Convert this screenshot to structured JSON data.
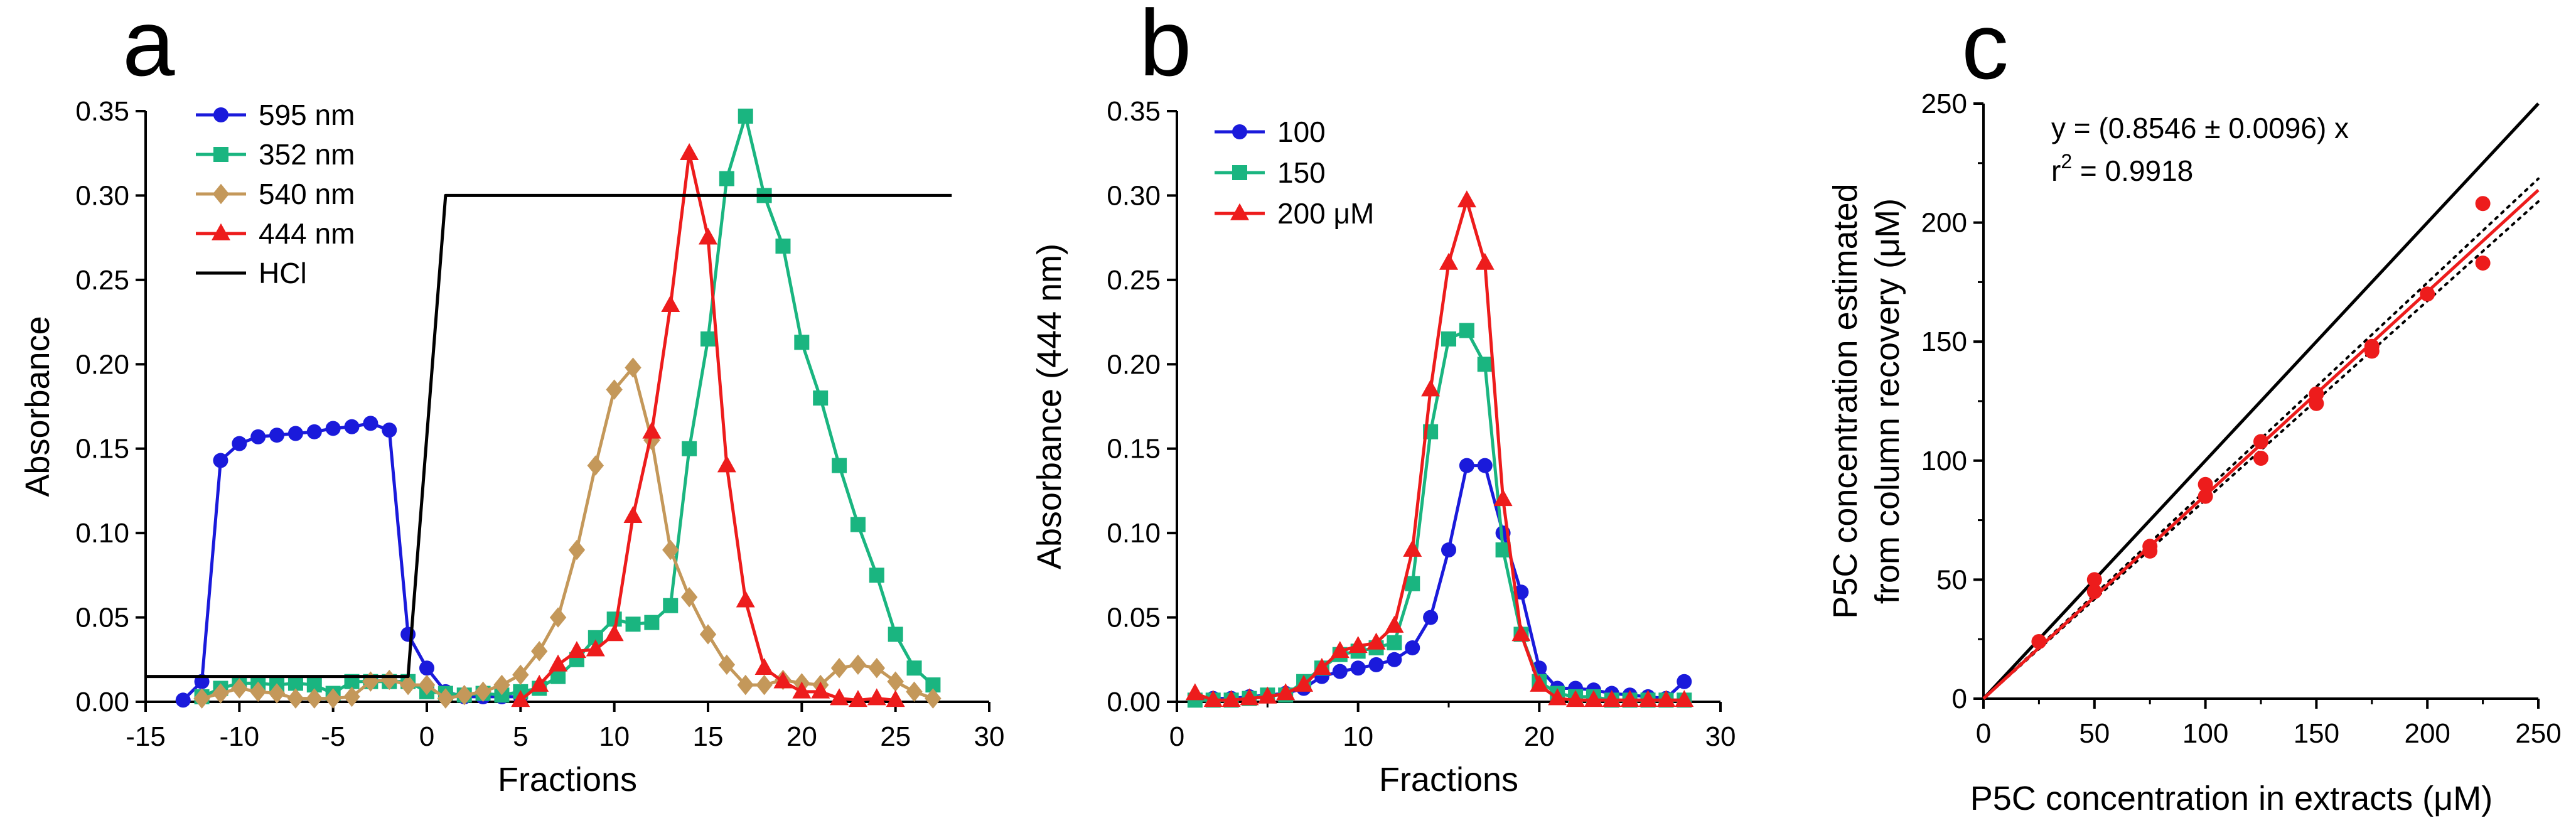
{
  "chart_data": [
    {
      "panel_label": "a",
      "type": "line",
      "title": "",
      "xlabel": "Fractions",
      "ylabel": "Absorbance",
      "xlim": [
        -15,
        30
      ],
      "ylim": [
        0,
        0.35
      ],
      "xticks": [
        -15,
        -10,
        -5,
        0,
        5,
        10,
        15,
        20,
        25,
        30
      ],
      "xtick_labels": [
        "-15",
        "-10",
        "-5",
        "0",
        "5",
        "10",
        "15",
        "20",
        "25",
        "30"
      ],
      "yticks": [
        0,
        0.05,
        0.1,
        0.15,
        0.2,
        0.25,
        0.3,
        0.35
      ],
      "ytick_labels": [
        "0.00",
        "0.05",
        "0.10",
        "0.15",
        "0.20",
        "0.25",
        "0.30",
        "0.35"
      ],
      "legend_position": "top-left",
      "series": [
        {
          "name": "595 nm",
          "color": "#1a1adb",
          "marker": "circle",
          "x": [
            -13,
            -12,
            -11,
            -10,
            -9,
            -8,
            -7,
            -6,
            -5,
            -4,
            -3,
            -2,
            -1,
            0,
            1,
            2,
            3,
            4,
            5
          ],
          "y": [
            0.001,
            0.012,
            0.143,
            0.153,
            0.157,
            0.158,
            0.159,
            0.16,
            0.162,
            0.163,
            0.165,
            0.161,
            0.04,
            0.02,
            0.006,
            0.003,
            0.003,
            0.003,
            0.003
          ]
        },
        {
          "name": "352 nm",
          "color": "#1ab580",
          "marker": "square",
          "x": [
            -12,
            -11,
            -10,
            -9,
            -8,
            -7,
            -6,
            -5,
            -4,
            -3,
            -2,
            -1,
            0,
            1,
            2,
            3,
            4,
            5,
            6,
            7,
            8,
            9,
            10,
            11,
            12,
            13,
            14,
            15,
            16,
            17,
            18,
            19,
            20,
            21,
            22,
            23,
            24,
            25,
            26,
            27
          ],
          "y": [
            0.003,
            0.008,
            0.011,
            0.011,
            0.01,
            0.011,
            0.01,
            0.005,
            0.012,
            0.012,
            0.012,
            0.012,
            0.006,
            0.005,
            0.004,
            0.005,
            0.004,
            0.006,
            0.008,
            0.015,
            0.025,
            0.038,
            0.049,
            0.046,
            0.047,
            0.057,
            0.15,
            0.215,
            0.31,
            0.347,
            0.3,
            0.27,
            0.213,
            0.18,
            0.14,
            0.105,
            0.075,
            0.04,
            0.02,
            0.01
          ]
        },
        {
          "name": "540 nm",
          "color": "#c4985a",
          "marker": "diamond",
          "x": [
            -12,
            -11,
            -10,
            -9,
            -8,
            -7,
            -6,
            -5,
            -4,
            -3,
            -2,
            -1,
            0,
            1,
            2,
            3,
            4,
            5,
            6,
            7,
            8,
            9,
            10,
            11,
            12,
            13,
            14,
            15,
            16,
            17,
            18,
            19,
            20,
            21,
            22,
            23,
            24,
            25,
            26,
            27
          ],
          "y": [
            0.002,
            0.005,
            0.008,
            0.006,
            0.005,
            0.002,
            0.002,
            0.002,
            0.003,
            0.012,
            0.013,
            0.01,
            0.01,
            0.002,
            0.004,
            0.006,
            0.01,
            0.016,
            0.03,
            0.05,
            0.09,
            0.14,
            0.185,
            0.198,
            0.155,
            0.09,
            0.062,
            0.04,
            0.022,
            0.01,
            0.01,
            0.013,
            0.011,
            0.01,
            0.02,
            0.022,
            0.02,
            0.012,
            0.006,
            0.002
          ]
        },
        {
          "name": "444 nm",
          "color": "#ed1c1c",
          "marker": "triangle",
          "x": [
            5,
            6,
            7,
            8,
            9,
            10,
            11,
            12,
            13,
            14,
            15,
            16,
            17,
            18,
            19,
            20,
            21,
            22,
            23,
            24,
            25
          ],
          "y": [
            0.001,
            0.01,
            0.022,
            0.03,
            0.031,
            0.04,
            0.11,
            0.16,
            0.235,
            0.325,
            0.275,
            0.14,
            0.06,
            0.02,
            0.012,
            0.006,
            0.006,
            0.002,
            0.001,
            0.002,
            0.001
          ]
        },
        {
          "name": "HCl",
          "color": "#000000",
          "marker": "none",
          "x": [
            -15,
            -1,
            1,
            28
          ],
          "y": [
            0.015,
            0.015,
            0.3,
            0.3
          ]
        }
      ]
    },
    {
      "panel_label": "b",
      "type": "line",
      "title": "",
      "xlabel": "Fractions",
      "ylabel": "Absorbance (444 nm)",
      "xlim": [
        0,
        30
      ],
      "ylim": [
        0,
        0.35
      ],
      "xticks": [
        0,
        10,
        20,
        30
      ],
      "xtick_labels": [
        "0",
        "10",
        "20",
        "30"
      ],
      "yticks": [
        0,
        0.05,
        0.1,
        0.15,
        0.2,
        0.25,
        0.3,
        0.35
      ],
      "ytick_labels": [
        "0.00",
        "0.05",
        "0.10",
        "0.15",
        "0.20",
        "0.25",
        "0.30",
        "0.35"
      ],
      "legend_position": "top-left",
      "series": [
        {
          "name": "100",
          "color": "#1a1adb",
          "marker": "circle",
          "x": [
            1,
            2,
            3,
            4,
            5,
            6,
            7,
            8,
            9,
            10,
            11,
            12,
            13,
            14,
            15,
            16,
            17,
            18,
            19,
            20,
            21,
            22,
            23,
            24,
            25,
            26,
            27,
            28
          ],
          "y": [
            0.002,
            0.002,
            0.002,
            0.003,
            0.004,
            0.005,
            0.008,
            0.015,
            0.018,
            0.02,
            0.022,
            0.025,
            0.032,
            0.05,
            0.09,
            0.14,
            0.14,
            0.1,
            0.065,
            0.02,
            0.008,
            0.008,
            0.007,
            0.005,
            0.004,
            0.003,
            0.002,
            0.012
          ]
        },
        {
          "name": "150",
          "color": "#1ab580",
          "marker": "square",
          "x": [
            1,
            2,
            3,
            4,
            5,
            6,
            7,
            8,
            9,
            10,
            11,
            12,
            13,
            14,
            15,
            16,
            17,
            18,
            19,
            20,
            21,
            22,
            23,
            24,
            25,
            26,
            27,
            28
          ],
          "y": [
            0.001,
            0.001,
            0.001,
            0.002,
            0.004,
            0.004,
            0.012,
            0.02,
            0.028,
            0.03,
            0.032,
            0.035,
            0.07,
            0.16,
            0.215,
            0.22,
            0.2,
            0.09,
            0.04,
            0.012,
            0.005,
            0.003,
            0.003,
            0.001,
            0.001,
            0.001,
            0.001,
            0.001
          ]
        },
        {
          "name": "200 μM",
          "color": "#ed1c1c",
          "marker": "triangle",
          "x": [
            1,
            2,
            3,
            4,
            5,
            6,
            7,
            8,
            9,
            10,
            11,
            12,
            13,
            14,
            15,
            16,
            17,
            18,
            19,
            20,
            21,
            22,
            23,
            24,
            25,
            26,
            27,
            28
          ],
          "y": [
            0.005,
            0.001,
            0.001,
            0.002,
            0.003,
            0.005,
            0.01,
            0.02,
            0.03,
            0.033,
            0.035,
            0.045,
            0.09,
            0.185,
            0.26,
            0.297,
            0.26,
            0.12,
            0.04,
            0.01,
            0.002,
            0.001,
            0.001,
            0.001,
            0.001,
            0.001,
            0.001,
            0.001
          ]
        }
      ]
    },
    {
      "panel_label": "c",
      "type": "scatter",
      "title": "",
      "xlabel": "P5C concentration in extracts (μM)",
      "ylabel_line1": "P5C concentration estimated",
      "ylabel_line2": "from column recovery (μM)",
      "xlim": [
        0,
        250
      ],
      "ylim": [
        0,
        250
      ],
      "xticks": [
        0,
        50,
        100,
        150,
        200,
        250
      ],
      "xtick_labels": [
        "0",
        "50",
        "100",
        "150",
        "200",
        "250"
      ],
      "yticks": [
        0,
        50,
        100,
        150,
        200,
        250
      ],
      "ytick_labels": [
        "0",
        "50",
        "100",
        "150",
        "200",
        "250"
      ],
      "annotation_line1": "y = (0.8546 ± 0.0096) x",
      "annotation_line2_base": "r",
      "annotation_line2_sup": "2",
      "annotation_line2_rest": " = 0.9918",
      "point_color": "#ed1c1c",
      "points": [
        {
          "x": 25,
          "y": 24
        },
        {
          "x": 50,
          "y": 50
        },
        {
          "x": 50,
          "y": 45
        },
        {
          "x": 75,
          "y": 62
        },
        {
          "x": 75,
          "y": 64
        },
        {
          "x": 100,
          "y": 90
        },
        {
          "x": 100,
          "y": 85
        },
        {
          "x": 125,
          "y": 108
        },
        {
          "x": 125,
          "y": 101
        },
        {
          "x": 150,
          "y": 128
        },
        {
          "x": 150,
          "y": 124
        },
        {
          "x": 175,
          "y": 148
        },
        {
          "x": 175,
          "y": 146
        },
        {
          "x": 200,
          "y": 170
        },
        {
          "x": 225,
          "y": 208
        },
        {
          "x": 225,
          "y": 183
        }
      ],
      "identity_line": {
        "slope": 1,
        "color": "#000000"
      },
      "fit_line": {
        "slope": 0.8546,
        "color": "#ed1c1c"
      },
      "confidence_band": {
        "upper_slope": 0.8738,
        "lower_slope": 0.8354,
        "color": "#000000"
      }
    }
  ]
}
